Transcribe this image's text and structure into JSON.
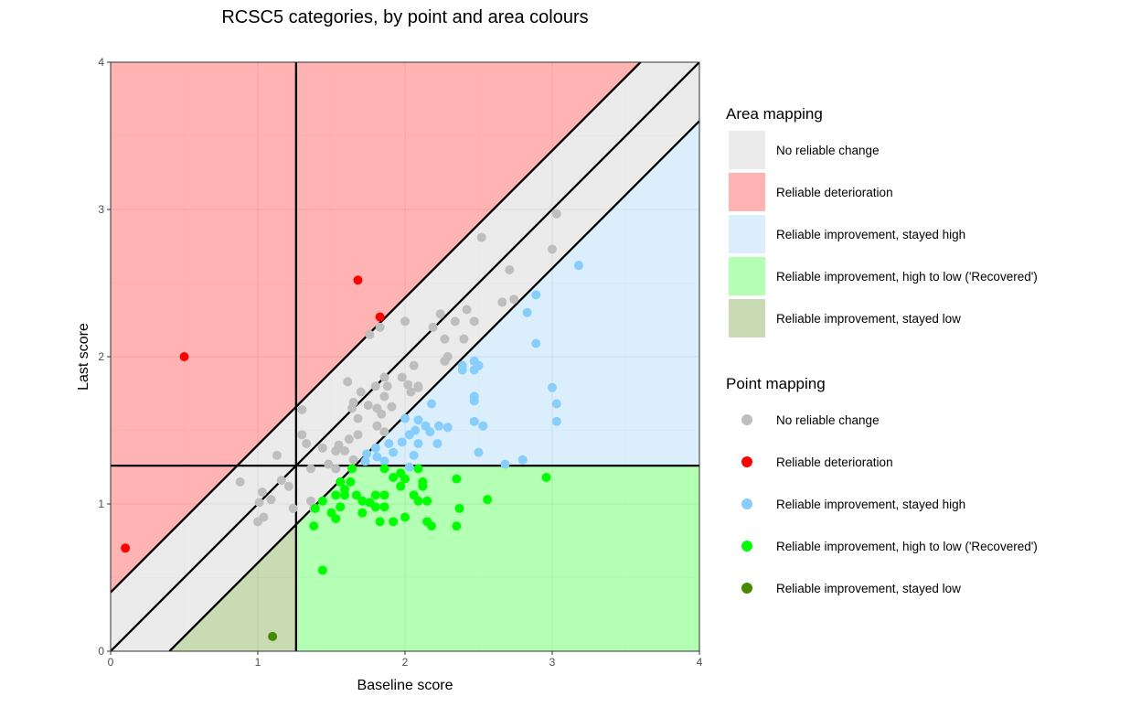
{
  "chart_data": {
    "type": "scatter",
    "title": "RCSC5 categories, by point and area colours",
    "xlabel": "Baseline score",
    "ylabel": "Last score",
    "xlim": [
      0,
      4
    ],
    "ylim": [
      0,
      4
    ],
    "xticks": [
      "0",
      "1",
      "2",
      "3",
      "4"
    ],
    "yticks": [
      "0",
      "1",
      "2",
      "3",
      "4"
    ],
    "grid": true,
    "cutoff": 1.26,
    "rci": 0.4,
    "reference_lines": {
      "diagonal": "y = x",
      "upper": "y = x + 0.4",
      "lower": "y = x - 0.4",
      "vertical": 1.26,
      "horizontal": 1.26
    },
    "area_legend": {
      "title": "Area mapping",
      "entries": [
        {
          "key": "nochange",
          "label": "No reliable change",
          "color": "#EBEBEB"
        },
        {
          "key": "deter",
          "label": "Reliable deterioration",
          "color": "#FFB3B3"
        },
        {
          "key": "imphigh",
          "label": "Reliable improvement, stayed high",
          "color": "#DAEEFC"
        },
        {
          "key": "recovered",
          "label": "Reliable improvement, high to low ('Recovered')",
          "color": "#B3FFB3"
        },
        {
          "key": "implow",
          "label": "Reliable improvement, stayed low",
          "color": "#C8DBB3"
        }
      ]
    },
    "point_legend": {
      "title": "Point mapping",
      "entries": [
        {
          "key": "nochange",
          "label": "No reliable change",
          "color": "#BEBEBE"
        },
        {
          "key": "deter",
          "label": "Reliable deterioration",
          "color": "#FF0000"
        },
        {
          "key": "imphigh",
          "label": "Reliable improvement, stayed high",
          "color": "#87CEFA"
        },
        {
          "key": "recovered",
          "label": "Reliable improvement, high to low ('Recovered')",
          "color": "#00FF00"
        },
        {
          "key": "implow",
          "label": "Reliable improvement, stayed low",
          "color": "#458B00"
        }
      ]
    },
    "series": [
      {
        "name": "No reliable change",
        "key": "nochange",
        "points": [
          [
            3.03,
            2.97
          ],
          [
            3.0,
            2.73
          ],
          [
            2.52,
            2.81
          ],
          [
            2.71,
            2.59
          ],
          [
            2.74,
            2.39
          ],
          [
            2.66,
            2.37
          ],
          [
            2.42,
            2.32
          ],
          [
            1.83,
            2.2
          ],
          [
            1.76,
            2.15
          ],
          [
            2.0,
            2.24
          ],
          [
            2.24,
            2.29
          ],
          [
            2.19,
            2.2
          ],
          [
            2.34,
            2.24
          ],
          [
            2.27,
            2.12
          ],
          [
            2.4,
            2.12
          ],
          [
            2.47,
            2.24
          ],
          [
            2.29,
            2.0
          ],
          [
            2.27,
            1.97
          ],
          [
            2.06,
            1.94
          ],
          [
            2.09,
            1.79
          ],
          [
            1.61,
            1.83
          ],
          [
            1.7,
            1.76
          ],
          [
            1.8,
            1.8
          ],
          [
            1.86,
            1.86
          ],
          [
            1.88,
            1.8
          ],
          [
            1.86,
            1.73
          ],
          [
            1.98,
            1.86
          ],
          [
            2.02,
            1.81
          ],
          [
            2.09,
            1.8
          ],
          [
            2.04,
            1.76
          ],
          [
            1.65,
            1.69
          ],
          [
            1.64,
            1.65
          ],
          [
            1.75,
            1.67
          ],
          [
            1.81,
            1.65
          ],
          [
            1.91,
            1.66
          ],
          [
            1.68,
            1.58
          ],
          [
            1.84,
            1.61
          ],
          [
            1.81,
            1.53
          ],
          [
            1.86,
            1.49
          ],
          [
            1.68,
            1.47
          ],
          [
            1.62,
            1.44
          ],
          [
            1.55,
            1.4
          ],
          [
            1.59,
            1.36
          ],
          [
            1.53,
            1.36
          ],
          [
            1.3,
            1.64
          ],
          [
            1.3,
            1.47
          ],
          [
            1.33,
            1.41
          ],
          [
            1.44,
            1.38
          ],
          [
            1.13,
            1.33
          ],
          [
            1.36,
            1.24
          ],
          [
            1.48,
            1.27
          ],
          [
            1.53,
            1.24
          ],
          [
            1.65,
            1.3
          ],
          [
            1.16,
            1.16
          ],
          [
            0.88,
            1.15
          ],
          [
            1.03,
            1.08
          ],
          [
            1.21,
            1.12
          ],
          [
            1.09,
            1.03
          ],
          [
            1.01,
            1.01
          ],
          [
            1.0,
            0.88
          ],
          [
            1.04,
            0.91
          ],
          [
            1.24,
            0.97
          ],
          [
            1.36,
            1.02
          ],
          [
            1.38,
            0.97
          ]
        ]
      },
      {
        "name": "Reliable deterioration",
        "key": "deter",
        "points": [
          [
            0.1,
            0.7
          ],
          [
            0.5,
            2.0
          ],
          [
            1.68,
            2.52
          ],
          [
            1.83,
            2.27
          ]
        ]
      },
      {
        "name": "Reliable improvement, stayed high",
        "key": "imphigh",
        "points": [
          [
            3.18,
            2.62
          ],
          [
            2.89,
            2.42
          ],
          [
            2.83,
            2.3
          ],
          [
            2.89,
            2.09
          ],
          [
            2.39,
            1.94
          ],
          [
            2.39,
            1.91
          ],
          [
            2.47,
            1.97
          ],
          [
            2.5,
            1.94
          ],
          [
            2.47,
            1.91
          ],
          [
            3.0,
            1.79
          ],
          [
            3.03,
            1.68
          ],
          [
            3.03,
            1.56
          ],
          [
            2.47,
            1.73
          ],
          [
            2.47,
            1.7
          ],
          [
            2.47,
            1.56
          ],
          [
            2.53,
            1.53
          ],
          [
            2.5,
            1.35
          ],
          [
            2.68,
            1.27
          ],
          [
            2.8,
            1.3
          ],
          [
            2.18,
            1.68
          ],
          [
            2.0,
            1.58
          ],
          [
            2.29,
            1.52
          ],
          [
            2.23,
            1.53
          ],
          [
            2.09,
            1.57
          ],
          [
            2.14,
            1.53
          ],
          [
            2.17,
            1.49
          ],
          [
            2.07,
            1.5
          ],
          [
            2.03,
            1.47
          ],
          [
            1.98,
            1.42
          ],
          [
            1.89,
            1.41
          ],
          [
            2.09,
            1.41
          ],
          [
            2.22,
            1.41
          ],
          [
            1.92,
            1.35
          ],
          [
            1.81,
            1.32
          ],
          [
            1.74,
            1.34
          ],
          [
            1.8,
            1.38
          ],
          [
            1.86,
            1.29
          ],
          [
            2.06,
            1.33
          ],
          [
            2.03,
            1.25
          ],
          [
            1.73,
            1.29
          ]
        ]
      },
      {
        "name": "Reliable improvement, high to low ('Recovered')",
        "key": "recovered",
        "points": [
          [
            1.64,
            1.24
          ],
          [
            1.86,
            1.24
          ],
          [
            2.09,
            1.24
          ],
          [
            1.92,
            1.18
          ],
          [
            1.97,
            1.21
          ],
          [
            2.0,
            1.17
          ],
          [
            1.97,
            1.12
          ],
          [
            2.12,
            1.15
          ],
          [
            2.12,
            1.12
          ],
          [
            2.35,
            1.17
          ],
          [
            1.56,
            1.15
          ],
          [
            1.63,
            1.15
          ],
          [
            1.59,
            1.1
          ],
          [
            1.53,
            1.06
          ],
          [
            1.59,
            1.06
          ],
          [
            1.44,
            1.02
          ],
          [
            1.67,
            1.06
          ],
          [
            1.71,
            1.02
          ],
          [
            1.76,
            1.01
          ],
          [
            1.8,
            1.06
          ],
          [
            1.86,
            1.06
          ],
          [
            1.8,
            0.98
          ],
          [
            1.86,
            0.98
          ],
          [
            2.06,
            1.06
          ],
          [
            2.09,
            1.02
          ],
          [
            2.15,
            1.02
          ],
          [
            2.56,
            1.03
          ],
          [
            1.56,
            0.98
          ],
          [
            1.5,
            0.94
          ],
          [
            1.53,
            0.9
          ],
          [
            1.39,
            0.97
          ],
          [
            1.71,
            0.94
          ],
          [
            2.37,
            0.97
          ],
          [
            1.83,
            0.88
          ],
          [
            1.92,
            0.88
          ],
          [
            2.0,
            0.91
          ],
          [
            2.15,
            0.88
          ],
          [
            2.18,
            0.85
          ],
          [
            2.35,
            0.85
          ],
          [
            1.38,
            0.85
          ],
          [
            1.44,
            0.55
          ],
          [
            2.96,
            1.18
          ]
        ]
      },
      {
        "name": "Reliable improvement, stayed low",
        "key": "implow",
        "points": [
          [
            1.1,
            0.1
          ]
        ]
      }
    ]
  }
}
